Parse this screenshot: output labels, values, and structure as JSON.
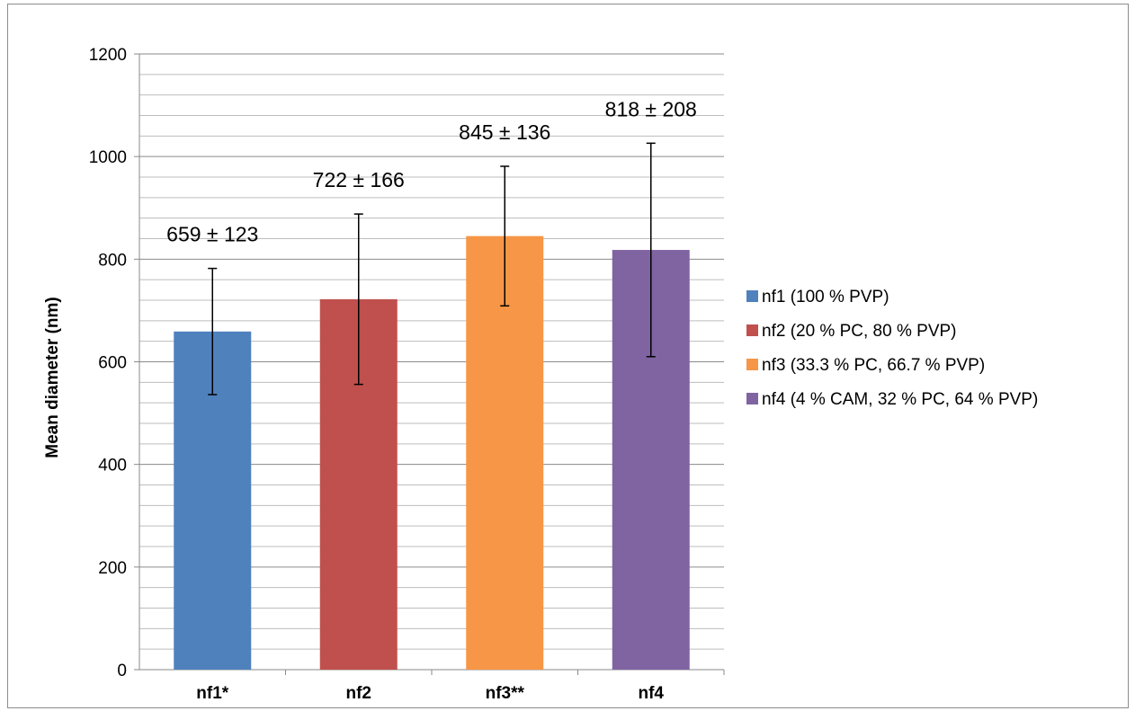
{
  "chart_data": {
    "type": "bar",
    "title": "",
    "xlabel": "",
    "ylabel": "Mean diameter (nm)",
    "ylim": [
      0,
      1200
    ],
    "yticks": [
      0,
      200,
      400,
      600,
      800,
      1000,
      1200
    ],
    "grid": true,
    "legend_position": "right",
    "categories": [
      "nf1*",
      "nf2",
      "nf3**",
      "nf4"
    ],
    "values": [
      659,
      722,
      845,
      818
    ],
    "errors": [
      123,
      166,
      136,
      208
    ],
    "data_labels": [
      "659 ± 123",
      "722 ± 166",
      "845 ± 136",
      "818 ± 208"
    ],
    "colors": [
      "#4f81bd",
      "#c0504d",
      "#f79646",
      "#8064a2"
    ],
    "legend": [
      "nf1 (100 % PVP)",
      "nf2 (20 % PC, 80 % PVP)",
      "nf3 (33.3 % PC, 66.7 % PVP)",
      "nf4 (4 % CAM, 32 % PC, 64 % PVP)"
    ]
  }
}
